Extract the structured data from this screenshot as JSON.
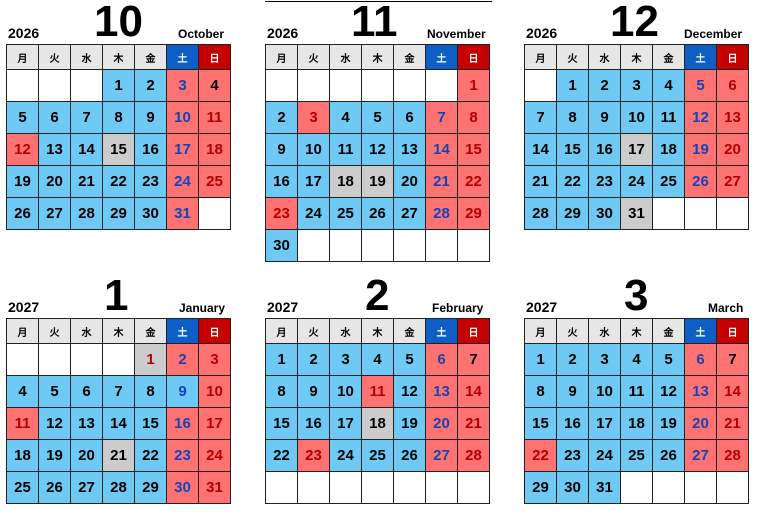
{
  "weekday_headers": [
    "月",
    "火",
    "水",
    "木",
    "金",
    "土",
    "日"
  ],
  "months": [
    {
      "id": "oct-2026",
      "year": "2026",
      "number": "10",
      "name": "October",
      "weeks": [
        [
          null,
          null,
          null,
          {
            "d": "1",
            "t": "w"
          },
          {
            "d": "2",
            "t": "w"
          },
          {
            "d": "3",
            "t": "hs"
          },
          {
            "d": "4",
            "t": "h"
          }
        ],
        [
          {
            "d": "5",
            "t": "w"
          },
          {
            "d": "6",
            "t": "w"
          },
          {
            "d": "7",
            "t": "w"
          },
          {
            "d": "8",
            "t": "w"
          },
          {
            "d": "9",
            "t": "w"
          },
          {
            "d": "10",
            "t": "hs"
          },
          {
            "d": "11",
            "t": "hr"
          }
        ],
        [
          {
            "d": "12",
            "t": "hr"
          },
          {
            "d": "13",
            "t": "w"
          },
          {
            "d": "14",
            "t": "w"
          },
          {
            "d": "15",
            "t": "g"
          },
          {
            "d": "16",
            "t": "w"
          },
          {
            "d": "17",
            "t": "hs"
          },
          {
            "d": "18",
            "t": "hr"
          }
        ],
        [
          {
            "d": "19",
            "t": "w"
          },
          {
            "d": "20",
            "t": "w"
          },
          {
            "d": "21",
            "t": "w"
          },
          {
            "d": "22",
            "t": "w"
          },
          {
            "d": "23",
            "t": "w"
          },
          {
            "d": "24",
            "t": "hs"
          },
          {
            "d": "25",
            "t": "hr"
          }
        ],
        [
          {
            "d": "26",
            "t": "w"
          },
          {
            "d": "27",
            "t": "w"
          },
          {
            "d": "28",
            "t": "w"
          },
          {
            "d": "29",
            "t": "w"
          },
          {
            "d": "30",
            "t": "w"
          },
          {
            "d": "31",
            "t": "hs"
          },
          null
        ]
      ]
    },
    {
      "id": "nov-2026",
      "year": "2026",
      "number": "11",
      "name": "November",
      "weeks": [
        [
          null,
          null,
          null,
          null,
          null,
          null,
          {
            "d": "1",
            "t": "hr"
          }
        ],
        [
          {
            "d": "2",
            "t": "w"
          },
          {
            "d": "3",
            "t": "hr"
          },
          {
            "d": "4",
            "t": "w"
          },
          {
            "d": "5",
            "t": "w"
          },
          {
            "d": "6",
            "t": "w"
          },
          {
            "d": "7",
            "t": "hs"
          },
          {
            "d": "8",
            "t": "hr"
          }
        ],
        [
          {
            "d": "9",
            "t": "w"
          },
          {
            "d": "10",
            "t": "w"
          },
          {
            "d": "11",
            "t": "w"
          },
          {
            "d": "12",
            "t": "w"
          },
          {
            "d": "13",
            "t": "w"
          },
          {
            "d": "14",
            "t": "hs"
          },
          {
            "d": "15",
            "t": "hr"
          }
        ],
        [
          {
            "d": "16",
            "t": "w"
          },
          {
            "d": "17",
            "t": "w"
          },
          {
            "d": "18",
            "t": "g"
          },
          {
            "d": "19",
            "t": "g"
          },
          {
            "d": "20",
            "t": "w"
          },
          {
            "d": "21",
            "t": "hs"
          },
          {
            "d": "22",
            "t": "hr"
          }
        ],
        [
          {
            "d": "23",
            "t": "hr"
          },
          {
            "d": "24",
            "t": "w"
          },
          {
            "d": "25",
            "t": "w"
          },
          {
            "d": "26",
            "t": "w"
          },
          {
            "d": "27",
            "t": "w"
          },
          {
            "d": "28",
            "t": "hs"
          },
          {
            "d": "29",
            "t": "hr"
          }
        ],
        [
          {
            "d": "30",
            "t": "w"
          },
          null,
          null,
          null,
          null,
          null,
          null
        ]
      ]
    },
    {
      "id": "dec-2026",
      "year": "2026",
      "number": "12",
      "name": "December",
      "weeks": [
        [
          null,
          {
            "d": "1",
            "t": "w"
          },
          {
            "d": "2",
            "t": "w"
          },
          {
            "d": "3",
            "t": "w"
          },
          {
            "d": "4",
            "t": "w"
          },
          {
            "d": "5",
            "t": "hs"
          },
          {
            "d": "6",
            "t": "hr"
          }
        ],
        [
          {
            "d": "7",
            "t": "w"
          },
          {
            "d": "8",
            "t": "w"
          },
          {
            "d": "9",
            "t": "w"
          },
          {
            "d": "10",
            "t": "w"
          },
          {
            "d": "11",
            "t": "w"
          },
          {
            "d": "12",
            "t": "hs"
          },
          {
            "d": "13",
            "t": "hr"
          }
        ],
        [
          {
            "d": "14",
            "t": "w"
          },
          {
            "d": "15",
            "t": "w"
          },
          {
            "d": "16",
            "t": "w"
          },
          {
            "d": "17",
            "t": "g"
          },
          {
            "d": "18",
            "t": "w"
          },
          {
            "d": "19",
            "t": "hs"
          },
          {
            "d": "20",
            "t": "hr"
          }
        ],
        [
          {
            "d": "21",
            "t": "w"
          },
          {
            "d": "22",
            "t": "w"
          },
          {
            "d": "23",
            "t": "w"
          },
          {
            "d": "24",
            "t": "w"
          },
          {
            "d": "25",
            "t": "w"
          },
          {
            "d": "26",
            "t": "hs"
          },
          {
            "d": "27",
            "t": "hr"
          }
        ],
        [
          {
            "d": "28",
            "t": "w"
          },
          {
            "d": "29",
            "t": "w"
          },
          {
            "d": "30",
            "t": "w"
          },
          {
            "d": "31",
            "t": "g"
          },
          null,
          null,
          null
        ]
      ]
    },
    {
      "id": "jan-2027",
      "year": "2027",
      "number": "1",
      "name": "January",
      "weeks": [
        [
          null,
          null,
          null,
          null,
          {
            "d": "1",
            "t": "gr"
          },
          {
            "d": "2",
            "t": "hs"
          },
          {
            "d": "3",
            "t": "hr"
          }
        ],
        [
          {
            "d": "4",
            "t": "w"
          },
          {
            "d": "5",
            "t": "w"
          },
          {
            "d": "6",
            "t": "w"
          },
          {
            "d": "7",
            "t": "w"
          },
          {
            "d": "8",
            "t": "w"
          },
          {
            "d": "9",
            "t": "s"
          },
          {
            "d": "10",
            "t": "hr"
          }
        ],
        [
          {
            "d": "11",
            "t": "hr"
          },
          {
            "d": "12",
            "t": "w"
          },
          {
            "d": "13",
            "t": "w"
          },
          {
            "d": "14",
            "t": "w"
          },
          {
            "d": "15",
            "t": "w"
          },
          {
            "d": "16",
            "t": "hs"
          },
          {
            "d": "17",
            "t": "hr"
          }
        ],
        [
          {
            "d": "18",
            "t": "w"
          },
          {
            "d": "19",
            "t": "w"
          },
          {
            "d": "20",
            "t": "w"
          },
          {
            "d": "21",
            "t": "g"
          },
          {
            "d": "22",
            "t": "w"
          },
          {
            "d": "23",
            "t": "hs"
          },
          {
            "d": "24",
            "t": "hr"
          }
        ],
        [
          {
            "d": "25",
            "t": "w"
          },
          {
            "d": "26",
            "t": "w"
          },
          {
            "d": "27",
            "t": "w"
          },
          {
            "d": "28",
            "t": "w"
          },
          {
            "d": "29",
            "t": "w"
          },
          {
            "d": "30",
            "t": "hs"
          },
          {
            "d": "31",
            "t": "hr"
          }
        ]
      ]
    },
    {
      "id": "feb-2027",
      "year": "2027",
      "number": "2",
      "name": "February",
      "weeks": [
        [
          {
            "d": "1",
            "t": "w"
          },
          {
            "d": "2",
            "t": "w"
          },
          {
            "d": "3",
            "t": "w"
          },
          {
            "d": "4",
            "t": "w"
          },
          {
            "d": "5",
            "t": "w"
          },
          {
            "d": "6",
            "t": "hs"
          },
          {
            "d": "7",
            "t": "h"
          }
        ],
        [
          {
            "d": "8",
            "t": "w"
          },
          {
            "d": "9",
            "t": "w"
          },
          {
            "d": "10",
            "t": "w"
          },
          {
            "d": "11",
            "t": "hr"
          },
          {
            "d": "12",
            "t": "w"
          },
          {
            "d": "13",
            "t": "hs"
          },
          {
            "d": "14",
            "t": "hr"
          }
        ],
        [
          {
            "d": "15",
            "t": "w"
          },
          {
            "d": "16",
            "t": "w"
          },
          {
            "d": "17",
            "t": "w"
          },
          {
            "d": "18",
            "t": "g"
          },
          {
            "d": "19",
            "t": "w"
          },
          {
            "d": "20",
            "t": "hs"
          },
          {
            "d": "21",
            "t": "hr"
          }
        ],
        [
          {
            "d": "22",
            "t": "w"
          },
          {
            "d": "23",
            "t": "hr"
          },
          {
            "d": "24",
            "t": "w"
          },
          {
            "d": "25",
            "t": "w"
          },
          {
            "d": "26",
            "t": "w"
          },
          {
            "d": "27",
            "t": "hs"
          },
          {
            "d": "28",
            "t": "hr"
          }
        ],
        [
          null,
          null,
          null,
          null,
          null,
          null,
          null
        ]
      ]
    },
    {
      "id": "mar-2027",
      "year": "2027",
      "number": "3",
      "name": "March",
      "weeks": [
        [
          {
            "d": "1",
            "t": "w"
          },
          {
            "d": "2",
            "t": "w"
          },
          {
            "d": "3",
            "t": "w"
          },
          {
            "d": "4",
            "t": "w"
          },
          {
            "d": "5",
            "t": "w"
          },
          {
            "d": "6",
            "t": "hs"
          },
          {
            "d": "7",
            "t": "h"
          }
        ],
        [
          {
            "d": "8",
            "t": "w"
          },
          {
            "d": "9",
            "t": "w"
          },
          {
            "d": "10",
            "t": "w"
          },
          {
            "d": "11",
            "t": "w"
          },
          {
            "d": "12",
            "t": "w"
          },
          {
            "d": "13",
            "t": "hs"
          },
          {
            "d": "14",
            "t": "hr"
          }
        ],
        [
          {
            "d": "15",
            "t": "w"
          },
          {
            "d": "16",
            "t": "w"
          },
          {
            "d": "17",
            "t": "w"
          },
          {
            "d": "18",
            "t": "w"
          },
          {
            "d": "19",
            "t": "w"
          },
          {
            "d": "20",
            "t": "hs"
          },
          {
            "d": "21",
            "t": "hr"
          }
        ],
        [
          {
            "d": "22",
            "t": "hr"
          },
          {
            "d": "23",
            "t": "w"
          },
          {
            "d": "24",
            "t": "w"
          },
          {
            "d": "25",
            "t": "w"
          },
          {
            "d": "26",
            "t": "w"
          },
          {
            "d": "27",
            "t": "hs"
          },
          {
            "d": "28",
            "t": "hr"
          }
        ],
        [
          {
            "d": "29",
            "t": "w"
          },
          {
            "d": "30",
            "t": "w"
          },
          {
            "d": "31",
            "t": "w"
          },
          null,
          null,
          null,
          null
        ]
      ]
    }
  ]
}
